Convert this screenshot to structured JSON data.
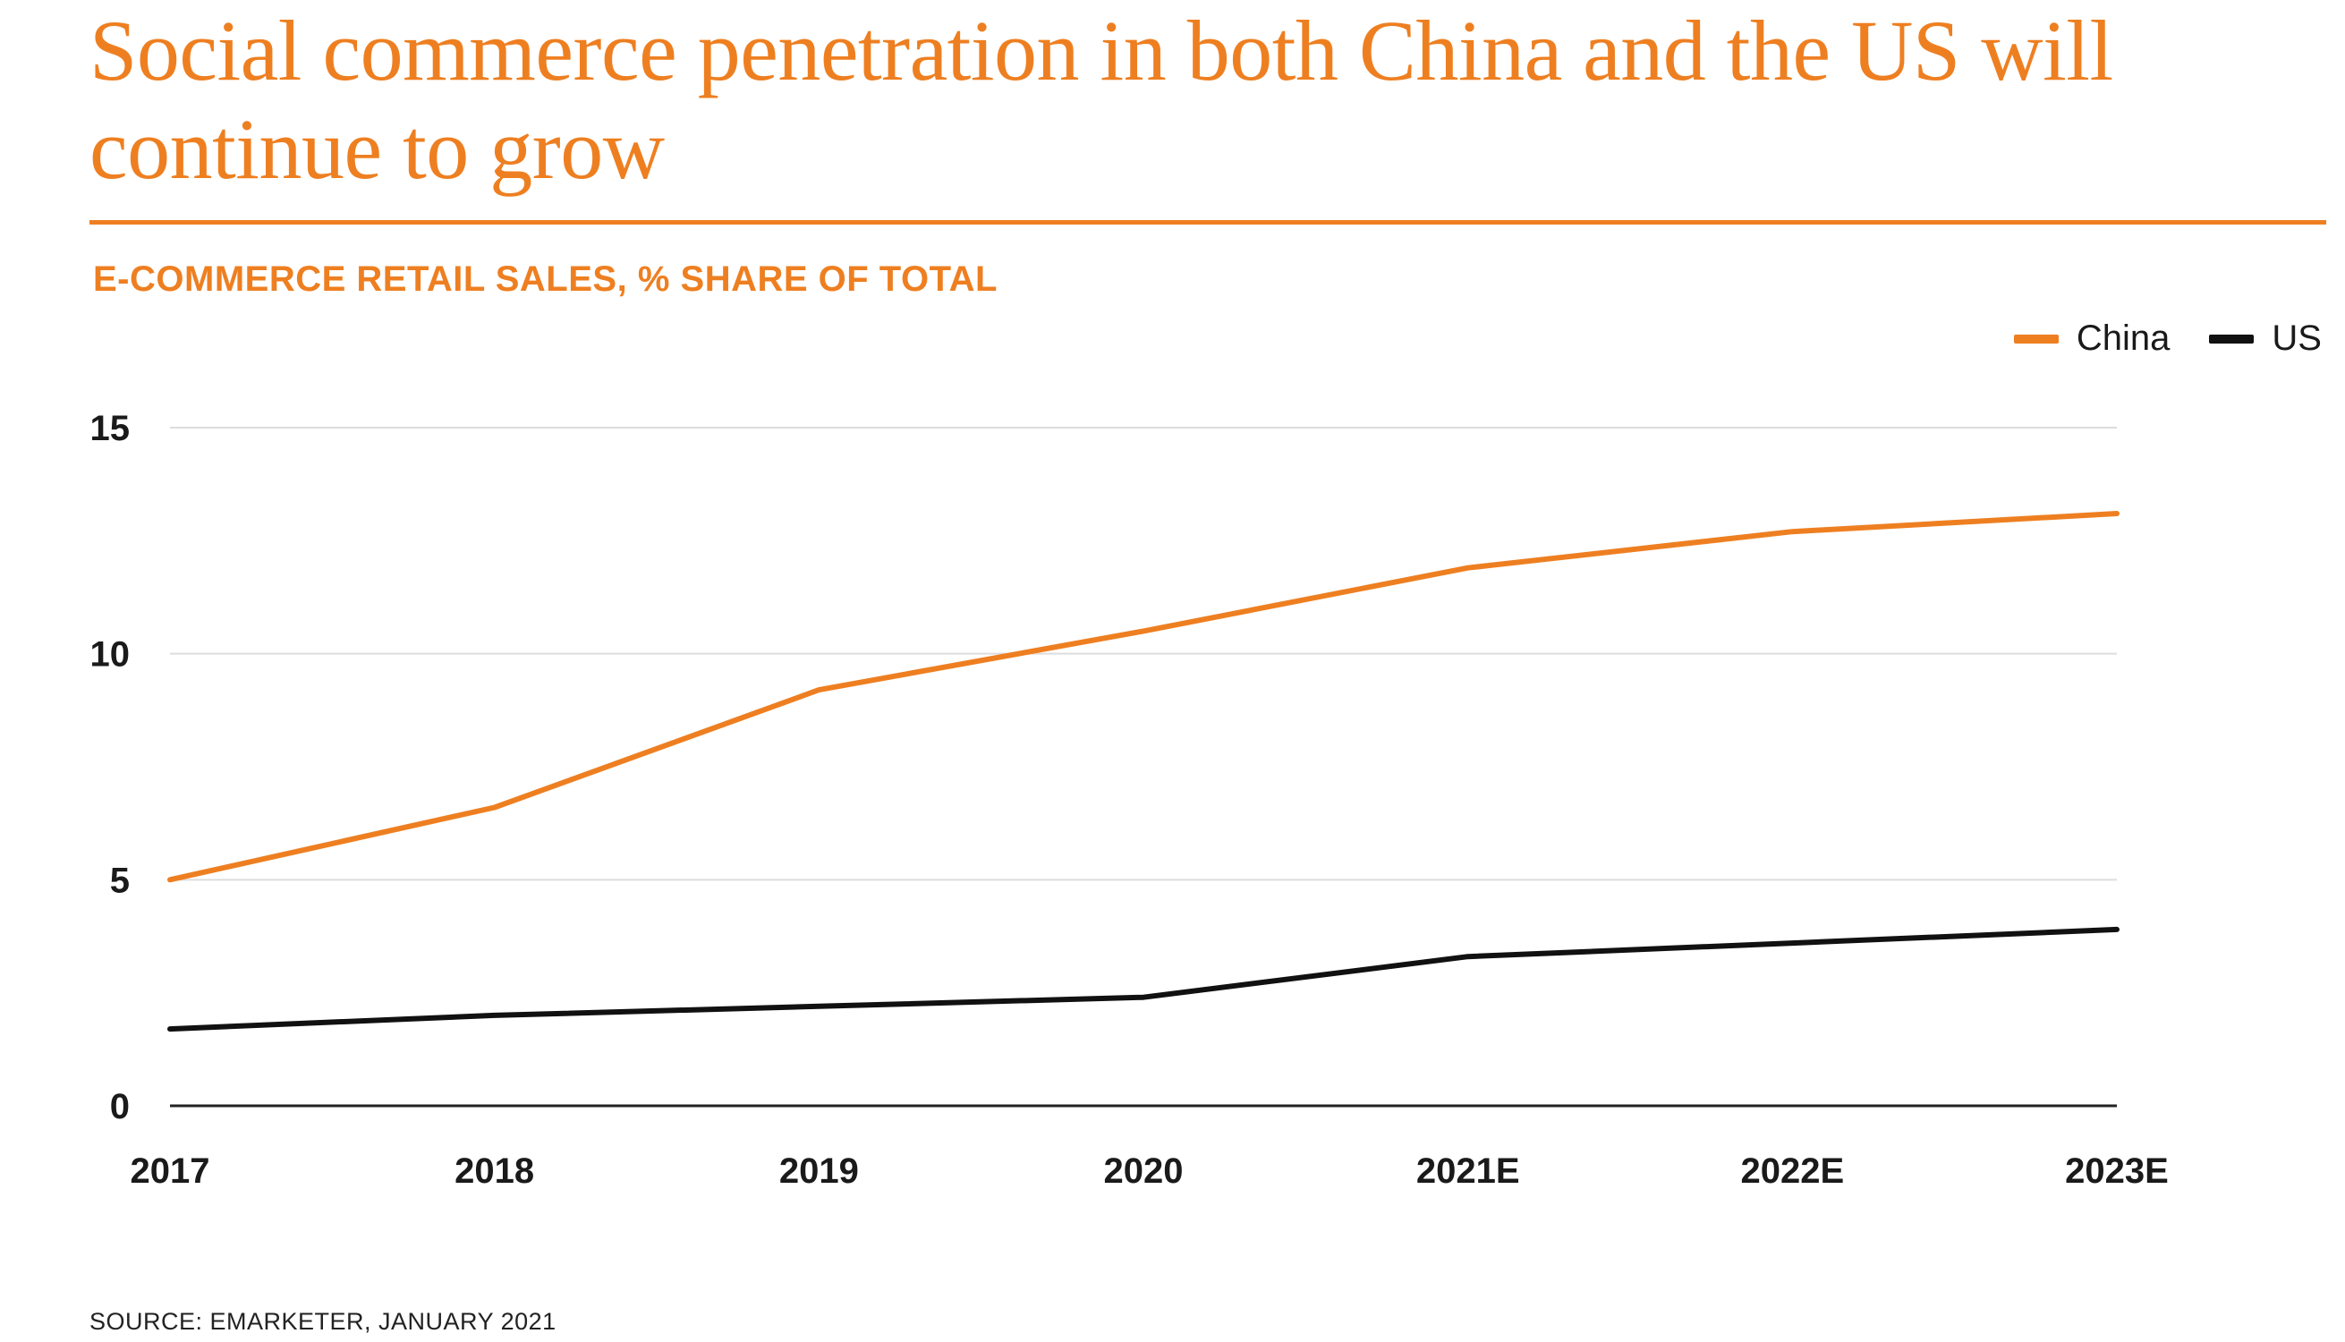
{
  "title": "Social commerce penetration in both China and the US will continue to grow",
  "subtitle": "E-COMMERCE RETAIL SALES, % SHARE OF TOTAL",
  "source": "SOURCE: EMARKETER, JANUARY 2021",
  "colors": {
    "accent": "#ee7f21",
    "china": "#ee7f21",
    "us": "#111111",
    "grid": "#dddddd",
    "axis": "#222222"
  },
  "chart_data": {
    "type": "line",
    "title": "Social commerce penetration in both China and the US will continue to grow",
    "subtitle": "E-COMMERCE RETAIL SALES, % SHARE OF TOTAL",
    "xlabel": "",
    "ylabel": "",
    "categories": [
      "2017",
      "2018",
      "2019",
      "2020",
      "2021E",
      "2022E",
      "2023E"
    ],
    "yticks": [
      0,
      5,
      10,
      15
    ],
    "ylim": [
      0,
      15
    ],
    "grid": true,
    "legend_position": "top-right",
    "series": [
      {
        "name": "China",
        "values": [
          5.0,
          6.6,
          9.2,
          10.5,
          11.9,
          12.7,
          13.1
        ]
      },
      {
        "name": "US",
        "values": [
          1.7,
          2.0,
          2.2,
          2.4,
          3.3,
          3.6,
          3.9
        ]
      }
    ]
  }
}
